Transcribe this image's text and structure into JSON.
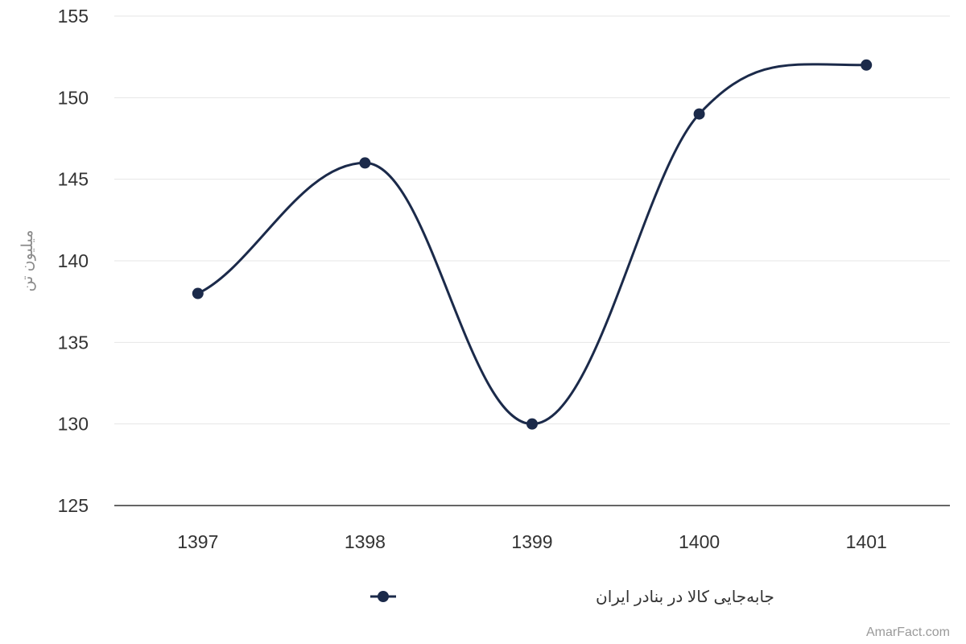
{
  "chart_data": {
    "type": "line",
    "curve": "smooth",
    "x": [
      "1397",
      "1398",
      "1399",
      "1400",
      "1401"
    ],
    "series": [
      {
        "name": "جابه‌جایی کالا در بنادر ایران",
        "values": [
          138,
          146,
          130,
          149,
          152
        ],
        "color": "#1b2a4a"
      }
    ],
    "ylabel": "میلیون تن",
    "ylim": [
      125,
      155
    ],
    "yticks": [
      125,
      130,
      135,
      140,
      145,
      150,
      155
    ],
    "grid": true,
    "legend_position": "bottom-center"
  },
  "watermark": "AmarFact.com"
}
